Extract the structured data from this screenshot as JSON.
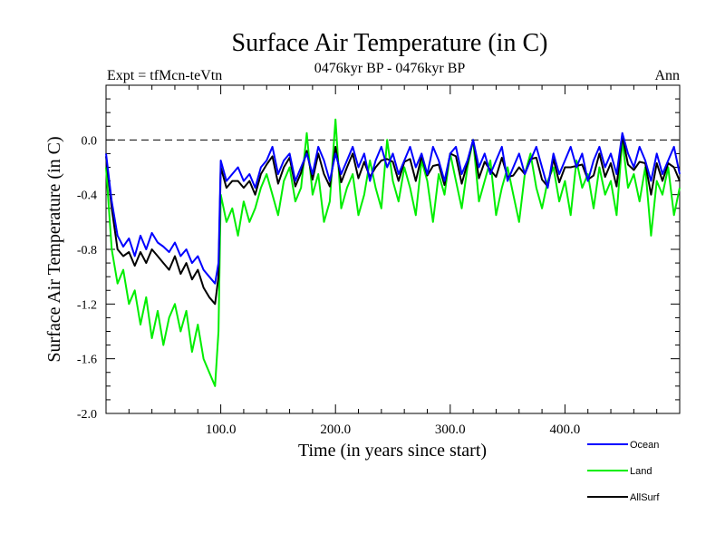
{
  "chart_data": {
    "type": "line",
    "title": "Surface Air Temperature (in C)",
    "subtitle": "0476kyr BP - 0476kyr BP",
    "left_label": "Expt = tfMcn-teVtn",
    "right_label": "Ann",
    "xlabel": "Time (in years since start)",
    "ylabel": "Surface Air Temperature (in C)",
    "xlim": [
      0,
      500
    ],
    "ylim": [
      -2.0,
      0.4
    ],
    "xticks": [
      100,
      200,
      300,
      400
    ],
    "xtick_labels": [
      "100.0",
      "200.0",
      "300.0",
      "400.0"
    ],
    "yticks": [
      -2.0,
      -1.6,
      -1.2,
      -0.8,
      -0.4,
      0.0
    ],
    "ytick_labels": [
      "-2.0",
      "-1.6",
      "-1.2",
      "-0.8",
      "-0.4",
      "0.0"
    ],
    "reference_line": 0.0,
    "grid": false,
    "legend_position": "bottom-right",
    "x": [
      0,
      5,
      10,
      15,
      20,
      25,
      30,
      35,
      40,
      45,
      50,
      55,
      60,
      65,
      70,
      75,
      80,
      85,
      90,
      95,
      98,
      100,
      105,
      110,
      115,
      120,
      125,
      130,
      135,
      140,
      145,
      150,
      155,
      160,
      165,
      170,
      175,
      180,
      185,
      190,
      195,
      200,
      205,
      210,
      215,
      220,
      225,
      230,
      235,
      240,
      245,
      250,
      255,
      260,
      265,
      270,
      275,
      280,
      285,
      290,
      295,
      300,
      305,
      310,
      315,
      320,
      325,
      330,
      335,
      340,
      345,
      350,
      355,
      360,
      365,
      370,
      375,
      380,
      385,
      390,
      395,
      400,
      405,
      410,
      415,
      420,
      425,
      430,
      435,
      440,
      445,
      450,
      455,
      460,
      465,
      470,
      475,
      480,
      485,
      490,
      495,
      500
    ],
    "series": [
      {
        "name": "Ocean",
        "color": "#0000ff",
        "values": [
          -0.1,
          -0.45,
          -0.7,
          -0.78,
          -0.72,
          -0.85,
          -0.7,
          -0.8,
          -0.68,
          -0.75,
          -0.78,
          -0.82,
          -0.75,
          -0.85,
          -0.8,
          -0.9,
          -0.85,
          -0.95,
          -1.0,
          -1.05,
          -0.9,
          -0.15,
          -0.3,
          -0.25,
          -0.2,
          -0.3,
          -0.25,
          -0.35,
          -0.2,
          -0.15,
          -0.05,
          -0.25,
          -0.15,
          -0.1,
          -0.3,
          -0.2,
          -0.1,
          -0.25,
          -0.05,
          -0.15,
          -0.3,
          -0.1,
          -0.25,
          -0.15,
          -0.05,
          -0.2,
          -0.1,
          -0.3,
          -0.15,
          -0.05,
          -0.2,
          -0.1,
          -0.25,
          -0.15,
          -0.05,
          -0.2,
          -0.1,
          -0.25,
          -0.05,
          -0.15,
          -0.3,
          -0.1,
          -0.05,
          -0.25,
          -0.15,
          0.0,
          -0.2,
          -0.1,
          -0.25,
          -0.15,
          -0.05,
          -0.3,
          -0.2,
          -0.1,
          -0.25,
          -0.15,
          -0.05,
          -0.2,
          -0.35,
          -0.1,
          -0.25,
          -0.15,
          -0.05,
          -0.2,
          -0.1,
          -0.3,
          -0.15,
          -0.05,
          -0.2,
          -0.1,
          -0.25,
          0.05,
          -0.1,
          -0.2,
          -0.05,
          -0.15,
          -0.3,
          -0.1,
          -0.25,
          -0.15,
          -0.05,
          -0.25
        ]
      },
      {
        "name": "Land",
        "color": "#00ee00",
        "values": [
          -0.2,
          -0.8,
          -1.05,
          -0.95,
          -1.2,
          -1.1,
          -1.35,
          -1.15,
          -1.45,
          -1.25,
          -1.5,
          -1.3,
          -1.2,
          -1.4,
          -1.25,
          -1.55,
          -1.35,
          -1.6,
          -1.7,
          -1.8,
          -1.4,
          -0.4,
          -0.6,
          -0.5,
          -0.7,
          -0.45,
          -0.6,
          -0.5,
          -0.35,
          -0.25,
          -0.4,
          -0.55,
          -0.3,
          -0.2,
          -0.45,
          -0.35,
          0.05,
          -0.4,
          -0.25,
          -0.6,
          -0.45,
          0.15,
          -0.5,
          -0.35,
          -0.25,
          -0.55,
          -0.4,
          -0.15,
          -0.35,
          -0.5,
          0.0,
          -0.3,
          -0.45,
          -0.2,
          -0.35,
          -0.55,
          -0.15,
          -0.3,
          -0.6,
          -0.25,
          -0.4,
          -0.1,
          -0.3,
          -0.5,
          -0.2,
          0.0,
          -0.45,
          -0.3,
          -0.15,
          -0.55,
          -0.35,
          -0.2,
          -0.4,
          -0.6,
          -0.25,
          -0.1,
          -0.35,
          -0.5,
          -0.3,
          -0.2,
          -0.45,
          -0.3,
          -0.55,
          -0.15,
          -0.35,
          -0.25,
          -0.5,
          -0.2,
          -0.4,
          -0.3,
          -0.55,
          0.0,
          -0.35,
          -0.25,
          -0.45,
          -0.2,
          -0.7,
          -0.3,
          -0.4,
          -0.2,
          -0.55,
          -0.35
        ]
      },
      {
        "name": "AllSurf",
        "color": "#000000",
        "values": [
          -0.12,
          -0.5,
          -0.8,
          -0.85,
          -0.82,
          -0.92,
          -0.82,
          -0.9,
          -0.8,
          -0.85,
          -0.9,
          -0.95,
          -0.85,
          -0.98,
          -0.9,
          -1.02,
          -0.95,
          -1.08,
          -1.15,
          -1.2,
          -1.0,
          -0.2,
          -0.35,
          -0.3,
          -0.3,
          -0.35,
          -0.3,
          -0.4,
          -0.25,
          -0.18,
          -0.12,
          -0.32,
          -0.2,
          -0.13,
          -0.34,
          -0.24,
          -0.08,
          -0.29,
          -0.1,
          -0.25,
          -0.34,
          -0.05,
          -0.31,
          -0.2,
          -0.1,
          -0.28,
          -0.16,
          -0.27,
          -0.2,
          -0.15,
          -0.14,
          -0.16,
          -0.3,
          -0.16,
          -0.14,
          -0.3,
          -0.12,
          -0.26,
          -0.19,
          -0.18,
          -0.33,
          -0.1,
          -0.12,
          -0.32,
          -0.17,
          0.0,
          -0.28,
          -0.16,
          -0.22,
          -0.27,
          -0.13,
          -0.27,
          -0.26,
          -0.2,
          -0.25,
          -0.14,
          -0.13,
          -0.29,
          -0.34,
          -0.14,
          -0.31,
          -0.2,
          -0.2,
          -0.19,
          -0.18,
          -0.29,
          -0.26,
          -0.1,
          -0.27,
          -0.17,
          -0.34,
          0.03,
          -0.18,
          -0.22,
          -0.16,
          -0.17,
          -0.4,
          -0.17,
          -0.3,
          -0.17,
          -0.2,
          -0.3
        ]
      }
    ]
  }
}
